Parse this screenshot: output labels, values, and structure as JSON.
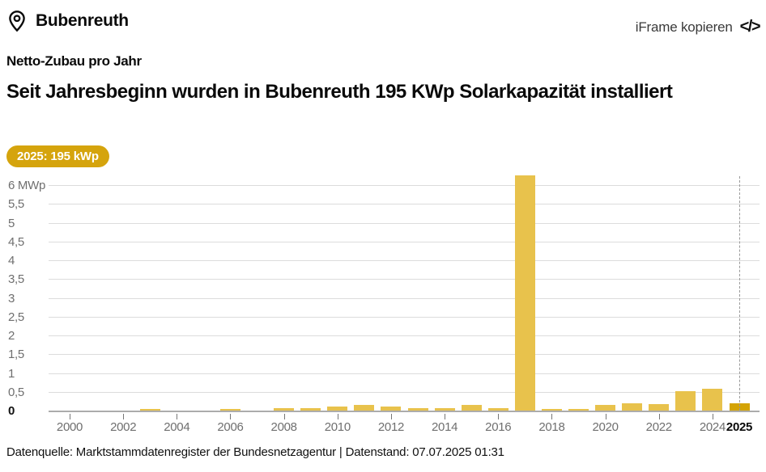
{
  "header": {
    "location": "Bubenreuth",
    "iframe_copy_label": "iFrame kopieren",
    "code_icon_glyph": "</>"
  },
  "chart_header": {
    "kicker": "Netto-Zubau pro Jahr",
    "title": "Seit Jahresbeginn wurden in Bubenreuth 195 KWp Solarkapazität installiert",
    "badge": "2025: 195 kWp",
    "badge_color": "#d5a40d"
  },
  "chart_data": {
    "type": "bar",
    "title": "Netto-Zubau pro Jahr",
    "unit": "MWp",
    "x": [
      2000,
      2001,
      2002,
      2003,
      2004,
      2005,
      2006,
      2007,
      2008,
      2009,
      2010,
      2011,
      2012,
      2013,
      2014,
      2015,
      2016,
      2017,
      2018,
      2019,
      2020,
      2021,
      2022,
      2023,
      2024,
      2025
    ],
    "values": [
      0,
      0,
      0,
      0.03,
      0,
      0,
      0.03,
      0,
      0.07,
      0.06,
      0.1,
      0.14,
      0.1,
      0.06,
      0.07,
      0.14,
      0.07,
      6.26,
      0.03,
      0.02,
      0.14,
      0.19,
      0.17,
      0.52,
      0.58,
      0.195
    ],
    "ylim": [
      0,
      6
    ],
    "ytick_step": 0.5,
    "ytick_labels": [
      "0",
      "0,5",
      "1",
      "1,5",
      "2",
      "2,5",
      "3",
      "3,5",
      "4",
      "4,5",
      "5",
      "5,5",
      "6 MWp"
    ],
    "xticks": [
      2000,
      2002,
      2004,
      2006,
      2008,
      2010,
      2012,
      2014,
      2016,
      2018,
      2020,
      2022,
      2024
    ],
    "highlight_year": 2025,
    "highlight_label": "2025",
    "highlight_value_kwp": "195 kWp",
    "bar_color": "#e8c24c",
    "highlight_color": "#d4a304",
    "gridline_color": "#dcdcdc",
    "grid": true,
    "legend": "none"
  },
  "footer": {
    "text": "Datenquelle: Marktstammdatenregister der Bundesnetzagentur | Datenstand: 07.07.2025 01:31"
  }
}
